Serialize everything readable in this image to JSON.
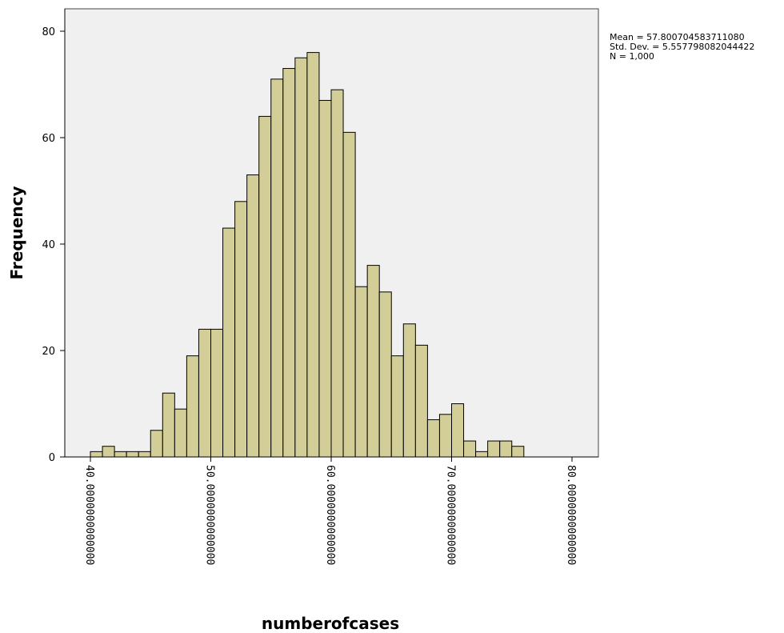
{
  "chart_data": {
    "type": "bar",
    "xlabel": "numberofcases",
    "ylabel": "Frequency",
    "xlim": [
      40,
      80
    ],
    "ylim": [
      0,
      85
    ],
    "bin_start": 40,
    "bin_width": 1,
    "x_ticks": [
      {
        "value": 40,
        "label": "40.0000000000000"
      },
      {
        "value": 50,
        "label": "50.0000000000000"
      },
      {
        "value": 60,
        "label": "60.0000000000000"
      },
      {
        "value": 70,
        "label": "70.0000000000000"
      },
      {
        "value": 80,
        "label": "80.0000000000000"
      }
    ],
    "y_ticks": [
      0,
      20,
      40,
      60,
      80
    ],
    "values": [
      1,
      2,
      1,
      1,
      1,
      5,
      12,
      9,
      19,
      24,
      24,
      43,
      48,
      53,
      64,
      71,
      73,
      75,
      76,
      67,
      69,
      61,
      32,
      36,
      31,
      19,
      25,
      21,
      7,
      8,
      10,
      3,
      1,
      3,
      3,
      2
    ],
    "bar_color": "#d3ce97",
    "plot_bg": "#f0f0f0",
    "grid": false,
    "legend_placement": "top-right",
    "stats": {
      "mean": "Mean = 57.800704583711080",
      "std": "Std. Dev. = 5.557798082044422",
      "n": "N = 1,000"
    }
  }
}
